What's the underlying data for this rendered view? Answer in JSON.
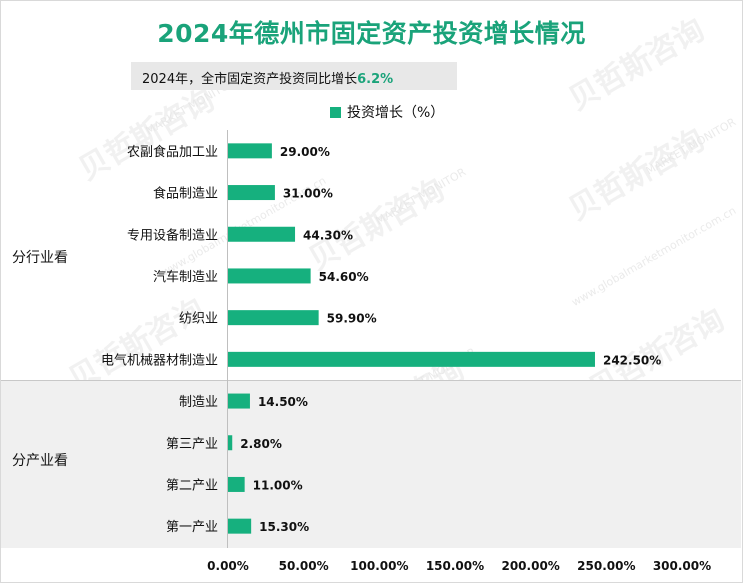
{
  "chart_data": {
    "type": "bar",
    "orientation": "horizontal",
    "title": "2024年德州市固定资产投资增长情况",
    "subtitle_text": "2024年，全市固定资产投资同比增长",
    "subtitle_value": "6.2%",
    "legend": "投资增长（%）",
    "categories": [
      "农副食品加工业",
      "食品制造业",
      "专用设备制造业",
      "汽车制造业",
      "纺织业",
      "电气机械器材制造业",
      "制造业",
      "第三产业",
      "第二产业",
      "第一产业"
    ],
    "values": [
      29.0,
      31.0,
      44.3,
      54.6,
      59.9,
      242.5,
      14.5,
      2.8,
      11.0,
      15.3
    ],
    "value_labels": [
      "29.00%",
      "31.00%",
      "44.30%",
      "54.60%",
      "59.90%",
      "242.50%",
      "14.50%",
      "2.80%",
      "11.00%",
      "15.30%"
    ],
    "groups": [
      {
        "name": "分行业看",
        "from": 0,
        "to": 5
      },
      {
        "name": "分产业看",
        "from": 6,
        "to": 9
      }
    ],
    "xlim": [
      0,
      300
    ],
    "xticks": [
      0,
      50,
      100,
      150,
      200,
      250,
      300
    ],
    "xtick_labels": [
      "0.00%",
      "50.00%",
      "100.00%",
      "150.00%",
      "200.00%",
      "250.00%",
      "300.00%"
    ],
    "bar_color": "#16b07e",
    "title_color": "#1aa37a"
  },
  "watermarks": {
    "brand": "贝哲斯咨询",
    "brand_en": "MARKET MONITOR",
    "site": "www.globalmarketmonitor.com.cn"
  }
}
